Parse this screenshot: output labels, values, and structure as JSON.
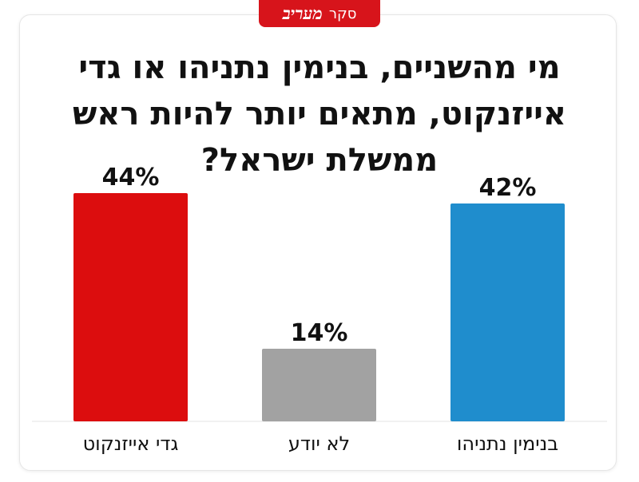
{
  "badge": {
    "sekar": "סקר",
    "brand": "מעריב"
  },
  "chart_data": {
    "type": "bar",
    "title": "מי מהשניים, בנימין נתניהו או גדי אייזנקוט, מתאים יותר להיות ראש ממשלת ישראל?",
    "categories": [
      "גדי אייזנקוט",
      "לא יודע",
      "בנימין נתניהו"
    ],
    "values": [
      44,
      14,
      42
    ],
    "value_labels": [
      "44%",
      "14%",
      "42%"
    ],
    "colors": [
      "#dc0d0e",
      "#a2a2a2",
      "#1f8dcd"
    ],
    "ylim": [
      0,
      50
    ],
    "xlabel": "",
    "ylabel": "",
    "grid": false,
    "legend": "none"
  }
}
